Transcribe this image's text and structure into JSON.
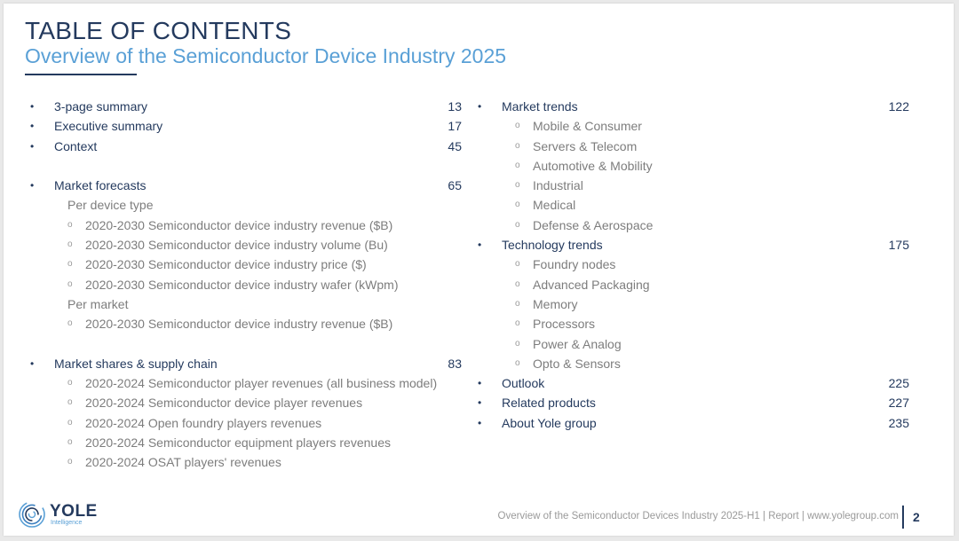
{
  "header": {
    "title": "TABLE OF CONTENTS",
    "subtitle": "Overview of the Semiconductor Device Industry 2025"
  },
  "left_column": [
    {
      "kind": "main",
      "label": "3-page summary",
      "page": "13"
    },
    {
      "kind": "main",
      "label": "Executive summary",
      "page": "17"
    },
    {
      "kind": "main",
      "label": "Context",
      "page": "45"
    },
    {
      "kind": "gap"
    },
    {
      "kind": "main",
      "label": "Market forecasts",
      "page": "65"
    },
    {
      "kind": "head",
      "label": "Per device type"
    },
    {
      "kind": "sub",
      "label": "2020-2030 Semiconductor device industry revenue ($B)"
    },
    {
      "kind": "sub",
      "label": "2020-2030 Semiconductor device industry volume (Bu)"
    },
    {
      "kind": "sub",
      "label": "2020-2030 Semiconductor device industry price ($)"
    },
    {
      "kind": "sub",
      "label": "2020-2030 Semiconductor device industry wafer (kWpm)"
    },
    {
      "kind": "head",
      "label": "Per market"
    },
    {
      "kind": "sub",
      "label": "2020-2030 Semiconductor device industry revenue ($B)"
    },
    {
      "kind": "gap"
    },
    {
      "kind": "main",
      "label": "Market shares & supply chain",
      "page": "83"
    },
    {
      "kind": "sub",
      "label": "2020-2024 Semiconductor player revenues (all business model)"
    },
    {
      "kind": "sub",
      "label": "2020-2024 Semiconductor device player revenues"
    },
    {
      "kind": "sub",
      "label": "2020-2024 Open foundry players revenues"
    },
    {
      "kind": "sub",
      "label": "2020-2024 Semiconductor equipment players revenues"
    },
    {
      "kind": "sub",
      "label": "2020-2024 OSAT players' revenues"
    }
  ],
  "right_column": [
    {
      "kind": "main",
      "label": "Market trends",
      "page": "122"
    },
    {
      "kind": "sub",
      "label": "Mobile & Consumer"
    },
    {
      "kind": "sub",
      "label": "Servers & Telecom"
    },
    {
      "kind": "sub",
      "label": "Automotive & Mobility"
    },
    {
      "kind": "sub",
      "label": "Industrial"
    },
    {
      "kind": "sub",
      "label": "Medical"
    },
    {
      "kind": "sub",
      "label": "Defense & Aerospace"
    },
    {
      "kind": "main",
      "label": "Technology trends",
      "page": "175"
    },
    {
      "kind": "sub",
      "label": "Foundry nodes"
    },
    {
      "kind": "sub",
      "label": "Advanced Packaging"
    },
    {
      "kind": "sub",
      "label": "Memory"
    },
    {
      "kind": "sub",
      "label": "Processors"
    },
    {
      "kind": "sub",
      "label": "Power & Analog"
    },
    {
      "kind": "sub",
      "label": "Opto & Sensors"
    },
    {
      "kind": "main",
      "label": "Outlook",
      "page": "225"
    },
    {
      "kind": "main",
      "label": "Related products",
      "page": "227"
    },
    {
      "kind": "main",
      "label": "About Yole group",
      "page": "235"
    }
  ],
  "bullets": {
    "main": "•",
    "sub": "o"
  },
  "logo": {
    "name": "YOLE",
    "tagline": "Intelligence",
    "icon": "yole-swirl-icon"
  },
  "footer": {
    "text": "Overview of the Semiconductor Devices Industry 2025-H1 | Report | www.yolegroup.com",
    "page_number": "2"
  },
  "colors": {
    "navy": "#243a5e",
    "accent_blue": "#5aa0d6",
    "gray_text": "#7d7d7d"
  }
}
